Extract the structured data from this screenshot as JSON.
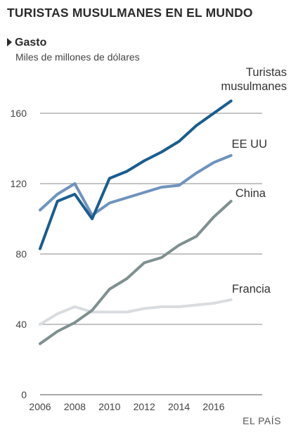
{
  "header": {
    "title": "TURISTAS MUSULMANES EN EL MUNDO",
    "section": "Gasto"
  },
  "source": "EL PAÍS",
  "chart_data": {
    "type": "line",
    "title": "TURISTAS MUSULMANES EN EL MUNDO",
    "subtitle": "Gasto",
    "xlabel": "",
    "ylabel": "Miles de millones de dólares",
    "xlim": [
      2006,
      2017.5
    ],
    "ylim": [
      0,
      165
    ],
    "xticks": [
      2006,
      2008,
      2010,
      2012,
      2014,
      2016
    ],
    "yticks": [
      0,
      40,
      80,
      120,
      160
    ],
    "grid": "horizontal",
    "legend": "direct labels",
    "series": [
      {
        "name": "Francia",
        "color": "#d9dde0",
        "label_lines": [
          "Francia"
        ],
        "x": [
          2006,
          2007,
          2008,
          2009,
          2010,
          2011,
          2012,
          2013,
          2014,
          2015,
          2016,
          2017
        ],
        "values": [
          40,
          46,
          50,
          47,
          47,
          47,
          49,
          50,
          50,
          51,
          52,
          54
        ]
      },
      {
        "name": "China",
        "color": "#7f9090",
        "label_lines": [
          "China"
        ],
        "x": [
          2006,
          2007,
          2008,
          2009,
          2010,
          2011,
          2012,
          2013,
          2014,
          2015,
          2016,
          2017
        ],
        "values": [
          29,
          36,
          41,
          48,
          60,
          66,
          75,
          78,
          85,
          90,
          101,
          110
        ]
      },
      {
        "name": "EE UU",
        "color": "#6e93bd",
        "label_lines": [
          "EE UU"
        ],
        "x": [
          2006,
          2007,
          2008,
          2009,
          2010,
          2011,
          2012,
          2013,
          2014,
          2015,
          2016,
          2017
        ],
        "values": [
          105,
          114,
          120,
          102,
          109,
          112,
          115,
          118,
          119,
          126,
          132,
          136
        ]
      },
      {
        "name": "Turistas musulmanes",
        "color": "#1a5d8f",
        "label_lines": [
          "Turistas",
          "musulmanes"
        ],
        "x": [
          2006,
          2007,
          2008,
          2009,
          2010,
          2011,
          2012,
          2013,
          2014,
          2015,
          2016,
          2017
        ],
        "values": [
          83,
          110,
          114,
          100,
          123,
          127,
          133,
          138,
          144,
          153,
          160,
          167
        ]
      }
    ]
  }
}
